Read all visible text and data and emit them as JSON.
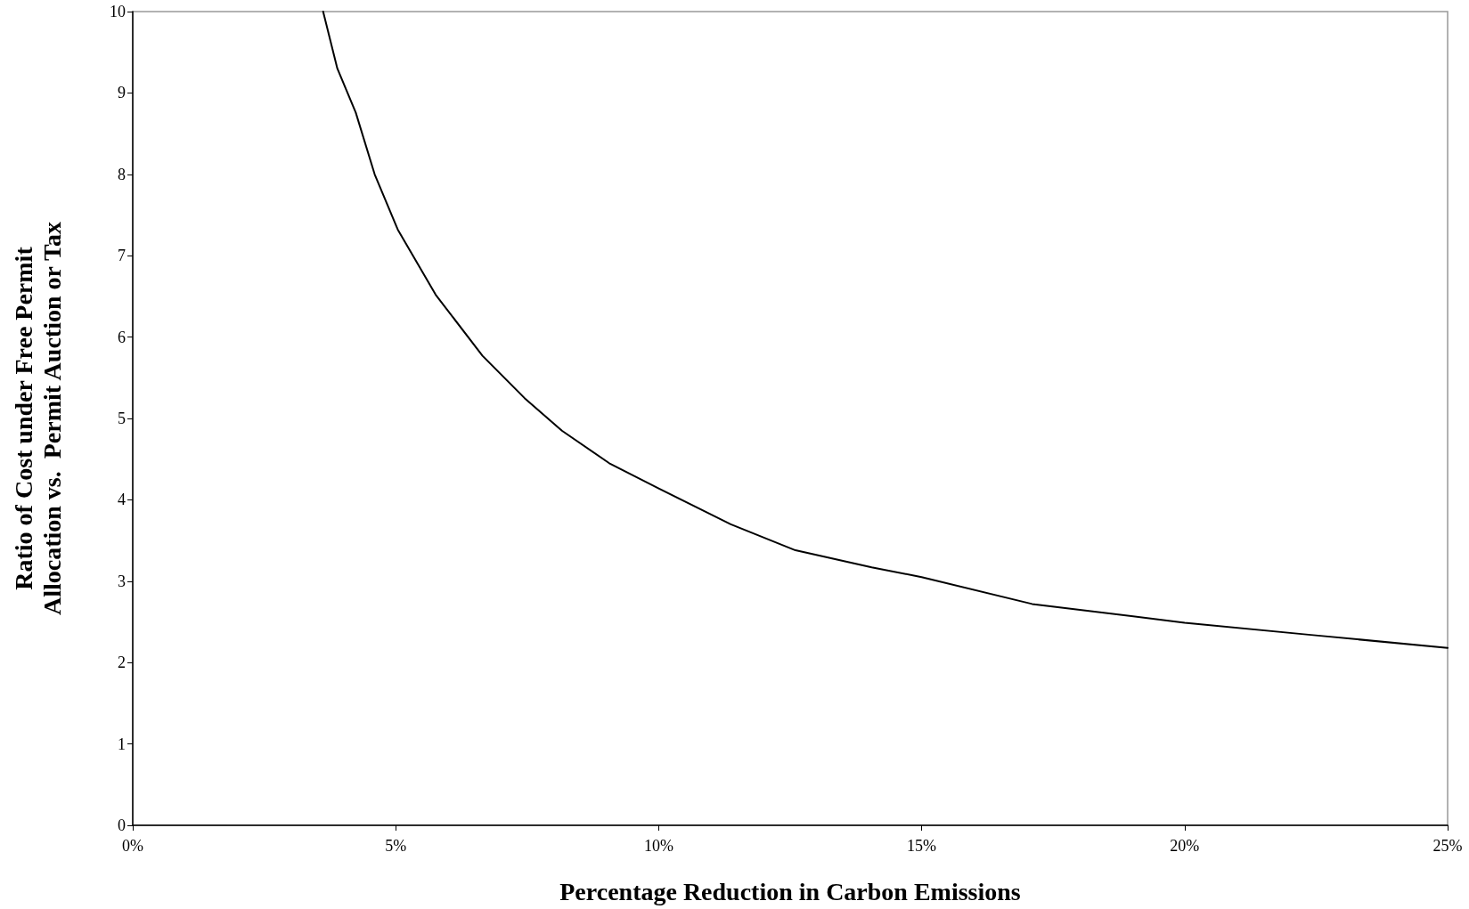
{
  "chart_data": {
    "type": "line",
    "xlabel": "Percentage Reduction in Carbon Emissions",
    "ylabel": "Ratio of Cost under Free Permit\nAllocation vs.  Permit Auction or Tax",
    "x": [
      3.62,
      3.89,
      4.24,
      4.6,
      5.04,
      5.76,
      6.65,
      7.45,
      8.16,
      9.06,
      10,
      11.37,
      12.6,
      14.05,
      15,
      17.1,
      20,
      22.4,
      25
    ],
    "series": [
      {
        "color": "#000000",
        "values": [
          10,
          9.3,
          8.76,
          8.0,
          7.32,
          6.52,
          5.77,
          5.25,
          4.85,
          4.45,
          4.14,
          3.7,
          3.38,
          3.17,
          3.05,
          2.72,
          2.49,
          2.34,
          2.18
        ]
      }
    ],
    "xlim": [
      0,
      25
    ],
    "ylim": [
      0,
      10
    ],
    "xticks": [
      {
        "value": 0,
        "label": "0%"
      },
      {
        "value": 5,
        "label": "5%"
      },
      {
        "value": 10,
        "label": "10%"
      },
      {
        "value": 15,
        "label": "15%"
      },
      {
        "value": 20,
        "label": "20%"
      },
      {
        "value": 25,
        "label": "25%"
      }
    ],
    "yticks": [
      0,
      1,
      2,
      3,
      4,
      5,
      6,
      7,
      8,
      9,
      10
    ],
    "grid": false,
    "marker": "none",
    "line_style": "solid"
  }
}
